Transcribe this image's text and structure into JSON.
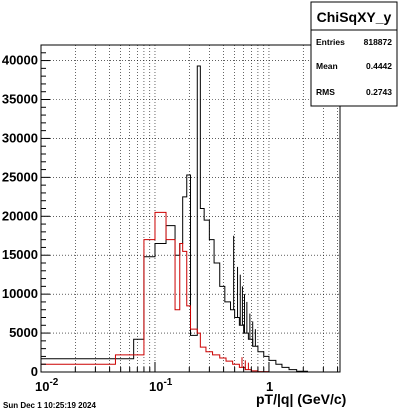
{
  "stats_box": {
    "title": "ChiSqXY_y",
    "rows": [
      {
        "label": "Entries",
        "value": "818872"
      },
      {
        "label": "Mean",
        "value": "0.4442"
      },
      {
        "label": "RMS",
        "value": "0.2743"
      }
    ]
  },
  "timestamp": "Sun Dec  1 10:25:19 2024",
  "chart_data": {
    "type": "histogram",
    "title": "ChiSqXY_y",
    "xlabel": "pT/|q| (GeV/c)",
    "ylabel": "",
    "x_scale": "log",
    "xlim": [
      0.01,
      4.2
    ],
    "ylim": [
      0,
      42000
    ],
    "grid": true,
    "x_ticks": [
      {
        "value": 0.01,
        "label": "10",
        "exp": "-2"
      },
      {
        "value": 0.1,
        "label": "10",
        "exp": "-1"
      },
      {
        "value": 1,
        "label": "1",
        "exp": ""
      }
    ],
    "y_ticks": [
      0,
      5000,
      10000,
      15000,
      20000,
      25000,
      30000,
      35000,
      40000
    ],
    "series": [
      {
        "color": "#000000",
        "bins": [
          [
            0.01,
            0.045,
            1700
          ],
          [
            0.045,
            0.065,
            1700
          ],
          [
            0.065,
            0.08,
            4200
          ],
          [
            0.08,
            0.1,
            14800
          ],
          [
            0.1,
            0.125,
            16500
          ],
          [
            0.125,
            0.15,
            18800
          ],
          [
            0.15,
            0.165,
            15000
          ],
          [
            0.165,
            0.175,
            16500
          ],
          [
            0.175,
            0.19,
            22500
          ],
          [
            0.19,
            0.205,
            25300
          ],
          [
            0.205,
            0.235,
            4700
          ],
          [
            0.235,
            0.25,
            39300
          ],
          [
            0.25,
            0.27,
            21000
          ],
          [
            0.27,
            0.3,
            19500
          ],
          [
            0.3,
            0.33,
            17000
          ],
          [
            0.33,
            0.37,
            14000
          ],
          [
            0.37,
            0.41,
            11000
          ],
          [
            0.41,
            0.46,
            9000
          ],
          [
            0.46,
            0.5,
            8000
          ],
          [
            0.5,
            0.55,
            7000
          ],
          [
            0.55,
            0.6,
            6000
          ],
          [
            0.6,
            0.66,
            5000
          ],
          [
            0.66,
            0.72,
            4200
          ],
          [
            0.72,
            0.8,
            3300
          ],
          [
            0.8,
            0.9,
            2600
          ],
          [
            0.9,
            1.0,
            2000
          ],
          [
            1.0,
            1.15,
            1500
          ],
          [
            1.15,
            1.3,
            1000
          ],
          [
            1.3,
            1.5,
            600
          ],
          [
            1.5,
            1.75,
            300
          ],
          [
            1.75,
            2.2,
            100
          ]
        ],
        "spikes": [
          [
            0.49,
            17500
          ],
          [
            0.53,
            13500
          ],
          [
            0.56,
            12500
          ],
          [
            0.585,
            11000
          ],
          [
            0.61,
            10000
          ],
          [
            0.64,
            9000
          ],
          [
            0.68,
            7500
          ],
          [
            0.72,
            6500
          ],
          [
            0.76,
            5500
          ]
        ]
      },
      {
        "color": "#cc0000",
        "bins": [
          [
            0.01,
            0.045,
            1000
          ],
          [
            0.045,
            0.065,
            2200
          ],
          [
            0.065,
            0.08,
            2200
          ],
          [
            0.08,
            0.1,
            17000
          ],
          [
            0.1,
            0.125,
            20500
          ],
          [
            0.125,
            0.15,
            17000
          ],
          [
            0.15,
            0.165,
            8000
          ],
          [
            0.165,
            0.175,
            16500
          ],
          [
            0.175,
            0.19,
            15500
          ],
          [
            0.19,
            0.205,
            8500
          ],
          [
            0.205,
            0.235,
            5500
          ],
          [
            0.235,
            0.25,
            5000
          ],
          [
            0.25,
            0.28,
            3200
          ],
          [
            0.28,
            0.32,
            2600
          ],
          [
            0.32,
            0.37,
            2200
          ],
          [
            0.37,
            0.42,
            1800
          ],
          [
            0.42,
            0.48,
            1400
          ],
          [
            0.48,
            0.55,
            1000
          ],
          [
            0.55,
            0.62,
            600
          ],
          [
            0.62,
            0.7,
            300
          ],
          [
            0.7,
            0.8,
            150
          ],
          [
            0.8,
            1.0,
            50
          ]
        ],
        "spikes": [
          [
            0.58,
            1900
          ],
          [
            0.62,
            1500
          ],
          [
            0.66,
            1200
          ]
        ]
      }
    ]
  }
}
